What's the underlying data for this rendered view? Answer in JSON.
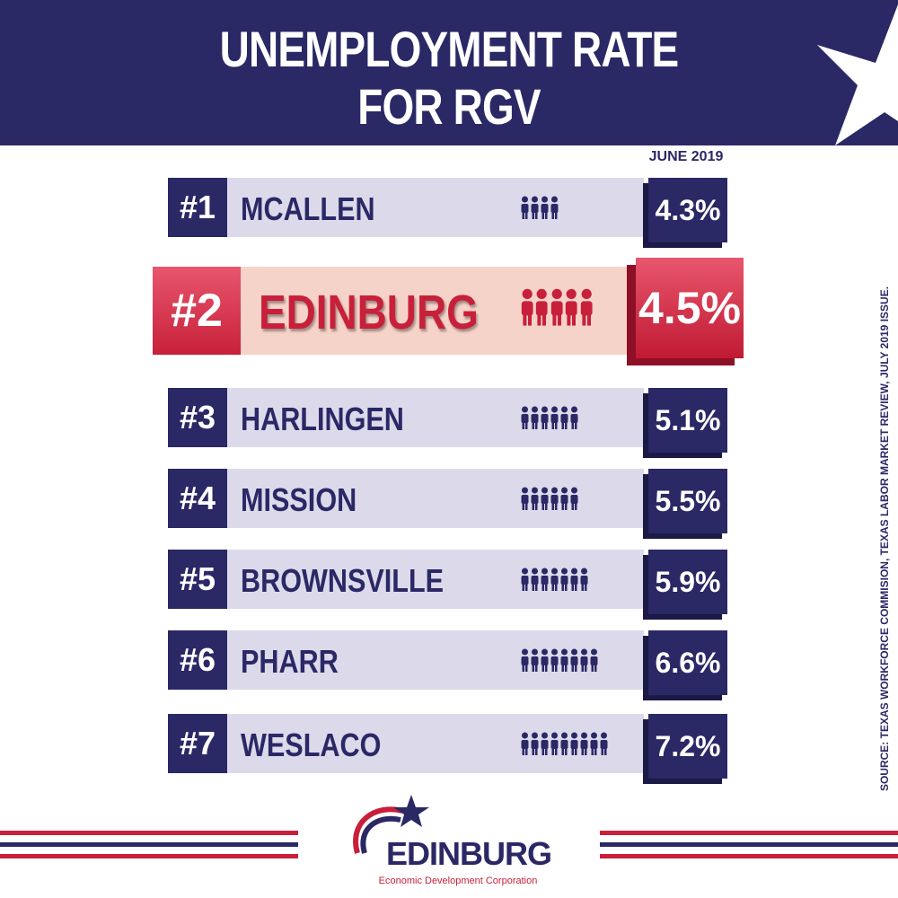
{
  "header": {
    "title_lines": [
      "UNEMPLOYMENT RATE",
      "FOR RGV"
    ]
  },
  "column_header": "JUNE 2019",
  "rows": [
    {
      "rank": "#1",
      "city": "MCALLEN",
      "rate": "4.3%"
    },
    {
      "rank": "#2",
      "city": "EDINBURG",
      "rate": "4.5%",
      "highlight": true
    },
    {
      "rank": "#3",
      "city": "HARLINGEN",
      "rate": "5.1%"
    },
    {
      "rank": "#4",
      "city": "MISSION",
      "rate": "5.5%"
    },
    {
      "rank": "#5",
      "city": "BROWNSVILLE",
      "rate": "5.9%"
    },
    {
      "rank": "#6",
      "city": "PHARR",
      "rate": "6.6%"
    },
    {
      "rank": "#7",
      "city": "WESLACO",
      "rate": "7.2%"
    }
  ],
  "source": "SOURCE: TEXAS WORKFORCE COMMISION, TEXAS LABOR MARKET REVIEW, JULY 2019 ISSUE.",
  "logo": {
    "name": "EDINBURG",
    "subtitle": "Economic Development Corporation"
  }
}
